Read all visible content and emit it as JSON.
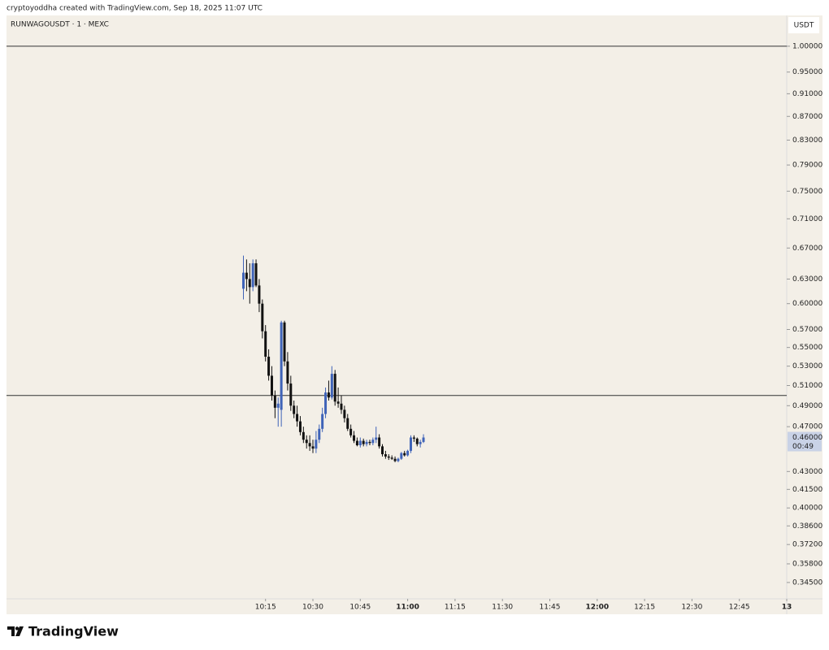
{
  "header": "cryptoyoddha created with TradingView.com, Sep 18, 2025 11:07 UTC",
  "logo": "TradingView",
  "chart_data": {
    "type": "candlestick",
    "title": "RUNWAGOUSDT · 1 · MEXC",
    "y_axis_label": "USDT",
    "log": true,
    "up_color": "#3f63b8",
    "down_color": "#111111",
    "ylim": [
      0.334,
      1.063
    ],
    "yticks": [
      {
        "value": 1.0,
        "label": "1.00000"
      },
      {
        "value": 0.95,
        "label": "0.95000"
      },
      {
        "value": 0.91,
        "label": "0.91000"
      },
      {
        "value": 0.87,
        "label": "0.87000"
      },
      {
        "value": 0.83,
        "label": "0.83000"
      },
      {
        "value": 0.79,
        "label": "0.79000"
      },
      {
        "value": 0.75,
        "label": "0.75000"
      },
      {
        "value": 0.71,
        "label": "0.71000"
      },
      {
        "value": 0.67,
        "label": "0.67000"
      },
      {
        "value": 0.63,
        "label": "0.63000"
      },
      {
        "value": 0.6,
        "label": "0.60000"
      },
      {
        "value": 0.57,
        "label": "0.57000"
      },
      {
        "value": 0.55,
        "label": "0.55000"
      },
      {
        "value": 0.53,
        "label": "0.53000"
      },
      {
        "value": 0.51,
        "label": "0.51000"
      },
      {
        "value": 0.49,
        "label": "0.49000"
      },
      {
        "value": 0.47,
        "label": "0.47000"
      },
      {
        "value": 0.43,
        "label": "0.43000"
      },
      {
        "value": 0.415,
        "label": "0.41500"
      },
      {
        "value": 0.4,
        "label": "0.40000"
      },
      {
        "value": 0.386,
        "label": "0.38600"
      },
      {
        "value": 0.372,
        "label": "0.37200"
      },
      {
        "value": 0.358,
        "label": "0.35800"
      },
      {
        "value": 0.345,
        "label": "0.34500"
      }
    ],
    "xlim": [
      "08:53",
      "13:00"
    ],
    "xticks": [
      "10:15",
      "10:30",
      "10:45",
      "11:00",
      "11:15",
      "11:30",
      "11:45",
      "12:00",
      "12:15",
      "12:30",
      "12:45",
      {
        "value": "13:00",
        "label": "13"
      }
    ],
    "hlines": [
      1.0,
      0.5
    ],
    "last_price": {
      "value": 0.46,
      "label": "0.46000"
    },
    "countdown": "00:49",
    "x": [
      "10:08",
      "10:09",
      "10:10",
      "10:11",
      "10:12",
      "10:13",
      "10:14",
      "10:15",
      "10:16",
      "10:17",
      "10:18",
      "10:19",
      "10:20",
      "10:21",
      "10:22",
      "10:23",
      "10:24",
      "10:25",
      "10:26",
      "10:27",
      "10:28",
      "10:29",
      "10:30",
      "10:31",
      "10:32",
      "10:33",
      "10:34",
      "10:35",
      "10:36",
      "10:37",
      "10:38",
      "10:39",
      "10:40",
      "10:41",
      "10:42",
      "10:43",
      "10:44",
      "10:45",
      "10:46",
      "10:47",
      "10:48",
      "10:49",
      "10:50",
      "10:51",
      "10:52",
      "10:53",
      "10:54",
      "10:55",
      "10:56",
      "10:57",
      "10:58",
      "10:59",
      "11:00",
      "11:01",
      "11:02",
      "11:03",
      "11:04",
      "11:05"
    ],
    "open": [
      0.618,
      0.638,
      0.63,
      0.62,
      0.65,
      0.622,
      0.6,
      0.568,
      0.54,
      0.52,
      0.5,
      0.488,
      0.486,
      0.578,
      0.535,
      0.512,
      0.49,
      0.482,
      0.475,
      0.465,
      0.458,
      0.455,
      0.452,
      0.45,
      0.458,
      0.468,
      0.482,
      0.503,
      0.498,
      0.522,
      0.494,
      0.492,
      0.486,
      0.478,
      0.468,
      0.462,
      0.457,
      0.453,
      0.457,
      0.454,
      0.456,
      0.455,
      0.458,
      0.46,
      0.452,
      0.445,
      0.443,
      0.442,
      0.441,
      0.439,
      0.441,
      0.446,
      0.444,
      0.448,
      0.46,
      0.459,
      0.454,
      0.456
    ],
    "high": [
      0.66,
      0.655,
      0.65,
      0.655,
      0.655,
      0.63,
      0.605,
      0.575,
      0.548,
      0.53,
      0.505,
      0.498,
      0.58,
      0.58,
      0.545,
      0.52,
      0.495,
      0.49,
      0.48,
      0.47,
      0.462,
      0.462,
      0.458,
      0.466,
      0.472,
      0.488,
      0.508,
      0.515,
      0.53,
      0.526,
      0.508,
      0.5,
      0.49,
      0.482,
      0.472,
      0.466,
      0.46,
      0.46,
      0.459,
      0.458,
      0.458,
      0.46,
      0.47,
      0.463,
      0.454,
      0.448,
      0.445,
      0.444,
      0.443,
      0.442,
      0.447,
      0.448,
      0.449,
      0.462,
      0.462,
      0.46,
      0.458,
      0.463
    ],
    "low": [
      0.605,
      0.615,
      0.6,
      0.615,
      0.62,
      0.59,
      0.56,
      0.535,
      0.515,
      0.495,
      0.478,
      0.47,
      0.47,
      0.53,
      0.505,
      0.485,
      0.478,
      0.47,
      0.462,
      0.455,
      0.45,
      0.448,
      0.446,
      0.446,
      0.455,
      0.465,
      0.478,
      0.495,
      0.496,
      0.49,
      0.488,
      0.482,
      0.474,
      0.466,
      0.46,
      0.455,
      0.452,
      0.451,
      0.452,
      0.452,
      0.453,
      0.453,
      0.455,
      0.45,
      0.443,
      0.441,
      0.44,
      0.44,
      0.438,
      0.438,
      0.44,
      0.443,
      0.443,
      0.446,
      0.456,
      0.452,
      0.451,
      0.455
    ],
    "close": [
      0.638,
      0.63,
      0.62,
      0.65,
      0.622,
      0.6,
      0.568,
      0.54,
      0.52,
      0.5,
      0.488,
      0.492,
      0.578,
      0.535,
      0.512,
      0.49,
      0.482,
      0.475,
      0.465,
      0.458,
      0.455,
      0.452,
      0.45,
      0.458,
      0.468,
      0.482,
      0.503,
      0.498,
      0.522,
      0.494,
      0.492,
      0.486,
      0.478,
      0.468,
      0.462,
      0.457,
      0.453,
      0.457,
      0.454,
      0.456,
      0.455,
      0.458,
      0.46,
      0.452,
      0.445,
      0.443,
      0.442,
      0.441,
      0.439,
      0.441,
      0.446,
      0.444,
      0.448,
      0.46,
      0.459,
      0.454,
      0.456,
      0.46
    ]
  }
}
